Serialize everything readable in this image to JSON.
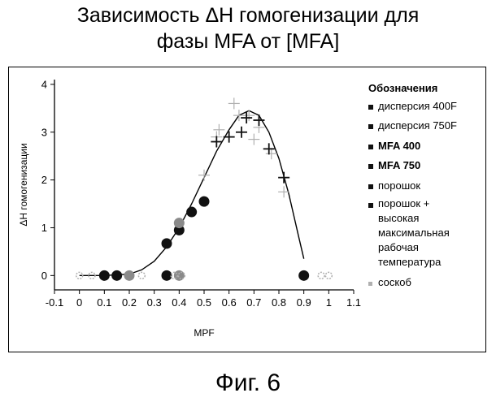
{
  "header": {
    "title_line1": "Зависимость ΔH гомогенизации для",
    "title_line2": "фазы MFA от [MFA]"
  },
  "figure_label": "Фиг. 6",
  "colors": {
    "dark": "#111111",
    "gray": "#8a8a8a",
    "light": "#b0b0b0",
    "axis": "#000000"
  },
  "chart_data": {
    "type": "scatter",
    "xlabel": "MPF",
    "ylabel": "ΔH гомогенизации",
    "xlim": [
      -0.1,
      1.1
    ],
    "ylim": [
      -0.3,
      4.1
    ],
    "xticks": [
      -0.1,
      0,
      0.1,
      0.2,
      0.3,
      0.4,
      0.5,
      0.6,
      0.7,
      0.8,
      0.9,
      1,
      1.1
    ],
    "xtick_labels": [
      "-0.1",
      "0",
      "0.1",
      "0.2",
      "0.3",
      "0.4",
      "0.5",
      "0.6",
      "0.7",
      "0.8",
      "0.9",
      "1",
      "1.1"
    ],
    "yticks": [
      0,
      1,
      2,
      3,
      4
    ],
    "ytick_labels": [
      "0",
      "1",
      "2",
      "3",
      "4"
    ],
    "grid": false,
    "legend_placement": "right",
    "legend_title": "Обозначения",
    "legend": [
      {
        "label": "дисперсия 400F",
        "bold": false
      },
      {
        "label": "дисперсия 750F",
        "bold": false
      },
      {
        "label": "MFA 400",
        "bold": true
      },
      {
        "label": "MFA 750",
        "bold": true
      },
      {
        "label": "порошок",
        "bold": false
      },
      {
        "label": "порошок + высокая максимальная рабочая температура",
        "bold": false,
        "lines": [
          "порошок +",
          "высокая",
          "максимальная",
          "рабочая",
          "температура"
        ]
      },
      {
        "label": "соскоб",
        "bold": false
      }
    ],
    "series": [
      {
        "marker": "cross-light",
        "points": [
          [
            0.5,
            2.1
          ],
          [
            0.55,
            2.9
          ],
          [
            0.56,
            3.05
          ],
          [
            0.62,
            3.6
          ],
          [
            0.64,
            3.35
          ],
          [
            0.68,
            3.35
          ],
          [
            0.7,
            2.85
          ],
          [
            0.72,
            3.1
          ],
          [
            0.77,
            2.55
          ],
          [
            0.82,
            1.75
          ]
        ]
      },
      {
        "marker": "cross-dark",
        "points": [
          [
            0.55,
            2.8
          ],
          [
            0.6,
            2.9
          ],
          [
            0.65,
            3.0
          ],
          [
            0.67,
            3.3
          ],
          [
            0.72,
            3.25
          ],
          [
            0.76,
            2.65
          ],
          [
            0.82,
            2.05
          ]
        ]
      },
      {
        "marker": "dot-dark",
        "points": [
          [
            0.1,
            0.0
          ],
          [
            0.15,
            0.0
          ],
          [
            0.35,
            0.0
          ],
          [
            0.35,
            0.67
          ],
          [
            0.4,
            0.95
          ],
          [
            0.45,
            1.33
          ],
          [
            0.5,
            1.55
          ],
          [
            0.9,
            0.0
          ]
        ]
      },
      {
        "marker": "dot-gray",
        "points": [
          [
            0.4,
            1.1
          ],
          [
            0.2,
            0.0
          ],
          [
            0.4,
            0.0
          ]
        ]
      },
      {
        "marker": "speck",
        "points": [
          [
            0.0,
            0.0
          ],
          [
            0.05,
            0.0
          ],
          [
            0.25,
            0.0
          ],
          [
            0.38,
            0.0
          ],
          [
            0.41,
            0.0
          ],
          [
            0.97,
            0.0
          ],
          [
            1.0,
            0.0
          ]
        ]
      }
    ],
    "fit_curve": [
      [
        0.0,
        0.0
      ],
      [
        0.1,
        0.0
      ],
      [
        0.2,
        0.03
      ],
      [
        0.25,
        0.12
      ],
      [
        0.3,
        0.3
      ],
      [
        0.35,
        0.6
      ],
      [
        0.4,
        1.0
      ],
      [
        0.45,
        1.5
      ],
      [
        0.5,
        2.05
      ],
      [
        0.55,
        2.6
      ],
      [
        0.6,
        3.05
      ],
      [
        0.64,
        3.35
      ],
      [
        0.68,
        3.45
      ],
      [
        0.72,
        3.35
      ],
      [
        0.76,
        3.0
      ],
      [
        0.8,
        2.45
      ],
      [
        0.84,
        1.7
      ],
      [
        0.88,
        0.8
      ],
      [
        0.9,
        0.35
      ]
    ]
  }
}
